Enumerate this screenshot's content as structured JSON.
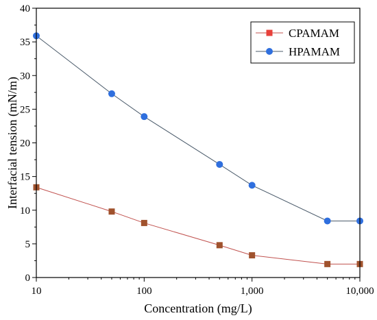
{
  "chart_data": {
    "type": "line",
    "title": "",
    "xlabel": "Concentration (mg/L)",
    "ylabel": "Interfacial tension (mN/m)",
    "xscale": "log",
    "xlim": [
      10,
      10000
    ],
    "ylim": [
      0,
      40
    ],
    "xticks": [
      10,
      100,
      1000,
      10000
    ],
    "xtick_labels": [
      "10",
      "100",
      "1,000",
      "10,000"
    ],
    "yticks": [
      0,
      5,
      10,
      15,
      20,
      25,
      30,
      35,
      40
    ],
    "ytick_labels": [
      "0",
      "5",
      "10",
      "15",
      "20",
      "25",
      "30",
      "35",
      "40"
    ],
    "grid": false,
    "legend_position": "top-right",
    "series": [
      {
        "name": "CPAMAM",
        "marker": "square",
        "line_color": "#c0504d",
        "marker_color": "#a0522d",
        "legend_marker_color": "#e8403a",
        "x": [
          10,
          50,
          100,
          500,
          1000,
          5000,
          10000
        ],
        "y": [
          13.4,
          9.8,
          8.1,
          4.8,
          3.3,
          2.0,
          2.0
        ]
      },
      {
        "name": "HPAMAM",
        "marker": "circle",
        "line_color": "#4a5a6a",
        "marker_color": "#2f6fde",
        "legend_marker_color": "#2f6fde",
        "x": [
          10,
          50,
          100,
          500,
          1000,
          5000,
          10000
        ],
        "y": [
          35.9,
          27.3,
          23.9,
          16.8,
          13.7,
          8.4,
          8.4
        ]
      }
    ]
  }
}
